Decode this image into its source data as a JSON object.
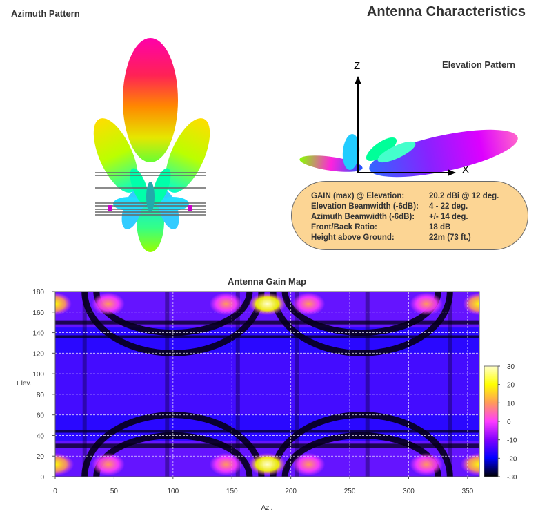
{
  "page": {
    "title": "Antenna Characteristics",
    "azimuth_title": "Azimuth Pattern",
    "elevation_title": "Elevation Pattern"
  },
  "elevation_axes": {
    "z_label": "Z",
    "x_label": "X"
  },
  "info": [
    {
      "label": "GAIN (max) @ Elevation:",
      "value": "20.2 dBi @ 12 deg."
    },
    {
      "label": "Elevation Beamwidth (-6dB):",
      "value": "4 - 22 deg."
    },
    {
      "label": "Azimuth Beamwidth (-6dB):",
      "value": "+/- 14 deg."
    },
    {
      "label": "Front/Back Ratio:",
      "value": "18 dB"
    },
    {
      "label": "Height above Ground:",
      "value": "22m (73 ft.)"
    }
  ],
  "chart_data": [
    {
      "type": "heatmap",
      "title": "Antenna Gain Map",
      "xlabel": "Azi.",
      "ylabel": "Elev.",
      "xlim": [
        0,
        360
      ],
      "ylim": [
        0,
        180
      ],
      "x_ticks": [
        0,
        50,
        100,
        150,
        200,
        250,
        300,
        350
      ],
      "y_ticks": [
        0,
        20,
        40,
        60,
        80,
        100,
        120,
        140,
        160,
        180
      ],
      "colorbar": {
        "range": [
          -30,
          30
        ],
        "ticks": [
          -30,
          -20,
          -10,
          0,
          10,
          20,
          30
        ]
      },
      "grid": true,
      "colors": [
        "#000000",
        "#0000ff",
        "#7f00ff",
        "#ff3cff",
        "#ff9a5a",
        "#ffff00",
        "#ffffcc"
      ],
      "hotspots": [
        {
          "azi": 180,
          "elev": 12,
          "gain": 20.2
        },
        {
          "azi": 180,
          "elev": 168,
          "gain": 20
        },
        {
          "azi": 0,
          "elev": 12,
          "gain": 16
        },
        {
          "azi": 360,
          "elev": 12,
          "gain": 16
        },
        {
          "azi": 0,
          "elev": 168,
          "gain": 10
        },
        {
          "azi": 360,
          "elev": 168,
          "gain": 10
        },
        {
          "azi": 145,
          "elev": 12,
          "gain": 6
        },
        {
          "azi": 215,
          "elev": 12,
          "gain": 6
        },
        {
          "azi": 145,
          "elev": 168,
          "gain": 7
        },
        {
          "azi": 215,
          "elev": 168,
          "gain": 7
        },
        {
          "azi": 45,
          "elev": 12,
          "gain": 5
        },
        {
          "azi": 315,
          "elev": 12,
          "gain": 5
        },
        {
          "azi": 45,
          "elev": 168,
          "gain": 2
        },
        {
          "azi": 315,
          "elev": 168,
          "gain": 2
        }
      ]
    }
  ]
}
